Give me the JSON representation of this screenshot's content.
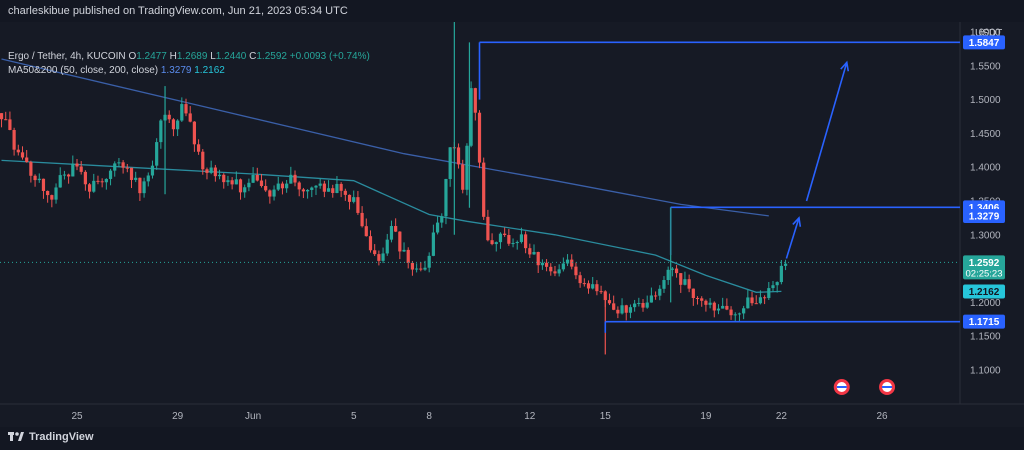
{
  "header": {
    "publisher": "charleskibue published on TradingView.com, Jun 21, 2023 05:34 UTC"
  },
  "legend": {
    "symbol": "Ergo / Tether, 4h, KUCOIN",
    "o_key": "O",
    "o_val": "1.2477",
    "h_key": "H",
    "h_val": "1.2689",
    "l_key": "L",
    "l_val": "1.2440",
    "c_key": "C",
    "c_val": "1.2592",
    "change": "+0.0093 (+0.74%)",
    "ma_label": "MA50&200 (50, close, 200, close)",
    "ma1_val": "1.3279",
    "ma2_val": "1.2162"
  },
  "footer": {
    "brand": "TradingView"
  },
  "colors": {
    "background": "#161a25",
    "up": "#26a69a",
    "down": "#ef5350",
    "ma200": "#3a5fa8",
    "ma50": "#2a8c9e",
    "drawing": "#2962ff",
    "grid": "#1f2330"
  },
  "chart_data": {
    "type": "candlestick",
    "title": "Ergo / Tether, 4h, KUCOIN",
    "y_unit": "USDT",
    "ylim": [
      1.05,
      1.65
    ],
    "y_ticks": [
      1.1,
      1.15,
      1.2,
      1.25,
      1.3,
      1.35,
      1.4,
      1.45,
      1.5,
      1.55,
      1.6
    ],
    "y_tick_labels": [
      "1.1000",
      "1.1500",
      "1.2000",
      "1.2500",
      "1.3000",
      "1.3500",
      "1.4000",
      "1.4500",
      "1.5000",
      "1.5500",
      "1.6000"
    ],
    "x_labels": [
      {
        "label": "25",
        "day": 3
      },
      {
        "label": "29",
        "day": 7
      },
      {
        "label": "Jun",
        "day": 10
      },
      {
        "label": "5",
        "day": 14
      },
      {
        "label": "8",
        "day": 17
      },
      {
        "label": "12",
        "day": 21
      },
      {
        "label": "15",
        "day": 24
      },
      {
        "label": "19",
        "day": 28
      },
      {
        "label": "22",
        "day": 31
      },
      {
        "label": "26",
        "day": 35
      }
    ],
    "x_range_days": [
      0,
      40
    ],
    "grid": false,
    "price_path": [
      [
        0.0,
        1.48
      ],
      [
        0.5,
        1.43
      ],
      [
        1.0,
        1.4
      ],
      [
        1.5,
        1.38
      ],
      [
        2.0,
        1.36
      ],
      [
        2.5,
        1.39
      ],
      [
        3.0,
        1.4
      ],
      [
        3.5,
        1.37
      ],
      [
        4.0,
        1.38
      ],
      [
        4.5,
        1.41
      ],
      [
        5.0,
        1.4
      ],
      [
        5.5,
        1.37
      ],
      [
        6.0,
        1.4
      ],
      [
        6.4,
        1.49
      ],
      [
        6.8,
        1.46
      ],
      [
        7.2,
        1.49
      ],
      [
        7.6,
        1.45
      ],
      [
        8.0,
        1.4
      ],
      [
        8.5,
        1.39
      ],
      [
        9.0,
        1.38
      ],
      [
        9.5,
        1.37
      ],
      [
        10.0,
        1.38
      ],
      [
        10.5,
        1.36
      ],
      [
        11.0,
        1.37
      ],
      [
        11.5,
        1.38
      ],
      [
        12.0,
        1.37
      ],
      [
        12.5,
        1.38
      ],
      [
        13.0,
        1.36
      ],
      [
        13.5,
        1.37
      ],
      [
        14.0,
        1.35
      ],
      [
        14.3,
        1.31
      ],
      [
        14.7,
        1.27
      ],
      [
        15.1,
        1.26
      ],
      [
        15.5,
        1.31
      ],
      [
        16.0,
        1.27
      ],
      [
        16.4,
        1.25
      ],
      [
        16.8,
        1.24
      ],
      [
        17.2,
        1.3
      ],
      [
        17.5,
        1.33
      ],
      [
        17.8,
        1.44
      ],
      [
        18.1,
        1.42
      ],
      [
        18.4,
        1.35
      ],
      [
        18.6,
        1.52
      ],
      [
        18.9,
        1.48
      ],
      [
        19.1,
        1.34
      ],
      [
        19.4,
        1.27
      ],
      [
        19.8,
        1.31
      ],
      [
        20.2,
        1.28
      ],
      [
        20.6,
        1.3
      ],
      [
        21.0,
        1.27
      ],
      [
        21.5,
        1.26
      ],
      [
        22.0,
        1.24
      ],
      [
        22.5,
        1.26
      ],
      [
        23.0,
        1.23
      ],
      [
        23.5,
        1.22
      ],
      [
        24.0,
        1.21
      ],
      [
        24.3,
        1.18
      ],
      [
        24.7,
        1.19
      ],
      [
        25.2,
        1.2
      ],
      [
        25.6,
        1.19
      ],
      [
        26.0,
        1.21
      ],
      [
        26.3,
        1.23
      ],
      [
        26.6,
        1.26
      ],
      [
        26.9,
        1.24
      ],
      [
        27.3,
        1.22
      ],
      [
        27.7,
        1.21
      ],
      [
        28.1,
        1.2
      ],
      [
        28.5,
        1.19
      ],
      [
        28.9,
        1.18
      ],
      [
        29.3,
        1.19
      ],
      [
        29.7,
        1.2
      ],
      [
        30.0,
        1.19
      ],
      [
        30.3,
        1.21
      ],
      [
        30.6,
        1.22
      ],
      [
        31.0,
        1.25
      ],
      [
        31.2,
        1.2592
      ]
    ],
    "wicks": [
      {
        "day": 18.0,
        "high": 1.645,
        "low": 1.3
      },
      {
        "day": 18.6,
        "high": 1.5847,
        "low": 1.34
      },
      {
        "day": 24.0,
        "high": 1.205,
        "low": 1.123
      },
      {
        "day": 26.6,
        "high": 1.3406,
        "low": 1.2
      },
      {
        "day": 6.5,
        "high": 1.52,
        "low": 1.36
      }
    ],
    "ma200": [
      [
        0,
        1.56
      ],
      [
        8,
        1.49
      ],
      [
        16,
        1.42
      ],
      [
        22,
        1.38
      ],
      [
        27,
        1.345
      ],
      [
        30.5,
        1.3279
      ]
    ],
    "ma50": [
      [
        0,
        1.41
      ],
      [
        5,
        1.4
      ],
      [
        10,
        1.39
      ],
      [
        14,
        1.38
      ],
      [
        17,
        1.33
      ],
      [
        18.5,
        1.32
      ],
      [
        22,
        1.3
      ],
      [
        26,
        1.27
      ],
      [
        28,
        1.24
      ],
      [
        30,
        1.215
      ],
      [
        31,
        1.2162
      ]
    ],
    "levels": [
      {
        "name": "resistance-high",
        "price": 1.5847,
        "from_day": 19.0,
        "label": "1.5847"
      },
      {
        "name": "resistance-mid",
        "price": 1.3406,
        "from_day": 26.6,
        "label": "1.3406"
      },
      {
        "name": "support",
        "price": 1.1715,
        "from_day": 24.0,
        "label": "1.1715"
      }
    ],
    "arrows": [
      {
        "from": [
          31.2,
          1.265
        ],
        "to": [
          31.7,
          1.325
        ]
      },
      {
        "from": [
          32.0,
          1.35
        ],
        "to": [
          33.6,
          1.555
        ]
      }
    ],
    "price_labels": [
      {
        "name": "last-price",
        "value": "1.2592",
        "sub": "02:25:23",
        "price": 1.2592,
        "color": "#26a69a"
      },
      {
        "name": "ma200-price",
        "value": "1.3279",
        "price": 1.3279,
        "color": "#2962ff"
      },
      {
        "name": "ma50-price",
        "value": "1.2162",
        "price": 1.2162,
        "color": "#26c6da"
      }
    ],
    "events_days": [
      33.4,
      35.2
    ]
  }
}
